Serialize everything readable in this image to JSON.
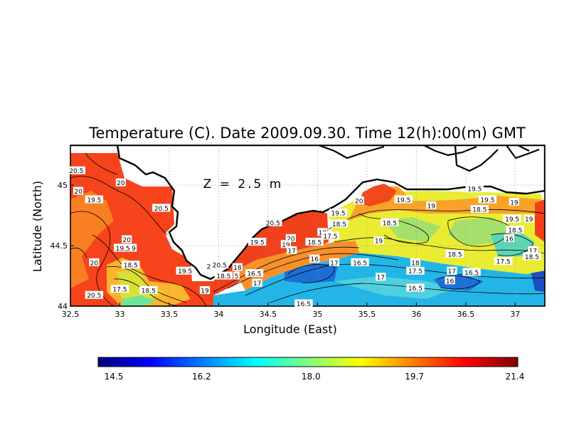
{
  "chart_data": {
    "type": "heatmap",
    "title": "Temperature (C). Date 2009.09.30. Time 12(h):00(m) GMT",
    "xlabel": "Longitude (East)",
    "ylabel": "Latitude (North)",
    "depth_label": "Z = 2.5 m",
    "xlim": [
      32.5,
      37.3
    ],
    "ylim": [
      44.0,
      45.33
    ],
    "x_ticks": [
      "32.5",
      "33",
      "33.5",
      "34",
      "34.5",
      "35",
      "35.5",
      "36",
      "36.5",
      "37"
    ],
    "y_ticks": [
      "44",
      "44.5",
      "45"
    ],
    "grid": true,
    "colorbar": {
      "min": 14.5,
      "max": 21.4,
      "ticks": [
        "14.5",
        "16.2",
        "18.0",
        "19.7",
        "21.4"
      ],
      "colors": [
        "#00007f",
        "#0000ff",
        "#007fff",
        "#00ffff",
        "#7fff7f",
        "#ffff00",
        "#ff7f00",
        "#ff0000",
        "#7f0000"
      ]
    },
    "contour_labels": [
      {
        "text": "20.5",
        "lon": 32.56,
        "lat": 45.12
      },
      {
        "text": "20",
        "lon": 33.01,
        "lat": 45.02
      },
      {
        "text": "20",
        "lon": 32.58,
        "lat": 44.95
      },
      {
        "text": "19.5",
        "lon": 32.74,
        "lat": 44.88
      },
      {
        "text": "20.5",
        "lon": 33.42,
        "lat": 44.81
      },
      {
        "text": "20",
        "lon": 33.07,
        "lat": 44.55
      },
      {
        "text": "19.5",
        "lon": 33.03,
        "lat": 44.48
      },
      {
        "text": "9",
        "lon": 33.14,
        "lat": 44.48
      },
      {
        "text": "20",
        "lon": 32.74,
        "lat": 44.36
      },
      {
        "text": "18.5",
        "lon": 33.11,
        "lat": 44.34
      },
      {
        "text": "19.5",
        "lon": 33.66,
        "lat": 44.29
      },
      {
        "text": "2",
        "lon": 33.9,
        "lat": 44.33
      },
      {
        "text": "20.5",
        "lon": 34.01,
        "lat": 44.34
      },
      {
        "text": "18",
        "lon": 34.19,
        "lat": 44.32
      },
      {
        "text": "18.5",
        "lon": 34.05,
        "lat": 44.25
      },
      {
        "text": "5",
        "lon": 34.18,
        "lat": 44.25
      },
      {
        "text": "16.5",
        "lon": 34.36,
        "lat": 44.27
      },
      {
        "text": "17",
        "lon": 34.39,
        "lat": 44.19
      },
      {
        "text": "19",
        "lon": 33.86,
        "lat": 44.13
      },
      {
        "text": "17.5",
        "lon": 33.0,
        "lat": 44.14
      },
      {
        "text": "18.5",
        "lon": 33.29,
        "lat": 44.13
      },
      {
        "text": "20.5",
        "lon": 32.74,
        "lat": 44.09
      },
      {
        "text": "20.5",
        "lon": 34.55,
        "lat": 44.69
      },
      {
        "text": "19.5",
        "lon": 34.39,
        "lat": 44.53
      },
      {
        "text": "20",
        "lon": 34.73,
        "lat": 44.56
      },
      {
        "text": "19",
        "lon": 34.68,
        "lat": 44.51
      },
      {
        "text": "17",
        "lon": 34.74,
        "lat": 44.46
      },
      {
        "text": "18.5",
        "lon": 34.97,
        "lat": 44.53
      },
      {
        "text": "18",
        "lon": 35.05,
        "lat": 44.61
      },
      {
        "text": "17.5",
        "lon": 35.13,
        "lat": 44.58
      },
      {
        "text": "19.5",
        "lon": 35.21,
        "lat": 44.77
      },
      {
        "text": "18.5",
        "lon": 35.22,
        "lat": 44.68
      },
      {
        "text": "20",
        "lon": 35.42,
        "lat": 44.87
      },
      {
        "text": "19.5",
        "lon": 35.87,
        "lat": 44.88
      },
      {
        "text": "19",
        "lon": 36.15,
        "lat": 44.83
      },
      {
        "text": "18.5",
        "lon": 35.73,
        "lat": 44.69
      },
      {
        "text": "19",
        "lon": 35.62,
        "lat": 44.54
      },
      {
        "text": "19.5",
        "lon": 36.59,
        "lat": 44.97
      },
      {
        "text": "19.5",
        "lon": 36.72,
        "lat": 44.88
      },
      {
        "text": "18.5",
        "lon": 36.64,
        "lat": 44.8
      },
      {
        "text": "19",
        "lon": 36.99,
        "lat": 44.86
      },
      {
        "text": "19.5",
        "lon": 36.97,
        "lat": 44.72
      },
      {
        "text": "19",
        "lon": 37.14,
        "lat": 44.72
      },
      {
        "text": "18.5",
        "lon": 37.0,
        "lat": 44.63
      },
      {
        "text": "16",
        "lon": 36.94,
        "lat": 44.56
      },
      {
        "text": "17",
        "lon": 37.18,
        "lat": 44.46
      },
      {
        "text": "18.5",
        "lon": 37.17,
        "lat": 44.41
      },
      {
        "text": "17.5",
        "lon": 36.88,
        "lat": 44.37
      },
      {
        "text": "18.5",
        "lon": 36.39,
        "lat": 44.43
      },
      {
        "text": "16",
        "lon": 34.97,
        "lat": 44.39
      },
      {
        "text": "17",
        "lon": 35.17,
        "lat": 44.36
      },
      {
        "text": "16.5",
        "lon": 35.43,
        "lat": 44.36
      },
      {
        "text": "18",
        "lon": 35.99,
        "lat": 44.36
      },
      {
        "text": "17.5",
        "lon": 35.99,
        "lat": 44.29
      },
      {
        "text": "17",
        "lon": 36.36,
        "lat": 44.29
      },
      {
        "text": "16.5",
        "lon": 36.56,
        "lat": 44.28
      },
      {
        "text": "16",
        "lon": 36.34,
        "lat": 44.21
      },
      {
        "text": "17",
        "lon": 35.64,
        "lat": 44.24
      },
      {
        "text": "16.5",
        "lon": 35.99,
        "lat": 44.15
      },
      {
        "text": "16.5",
        "lon": 34.86,
        "lat": 44.02
      }
    ]
  }
}
